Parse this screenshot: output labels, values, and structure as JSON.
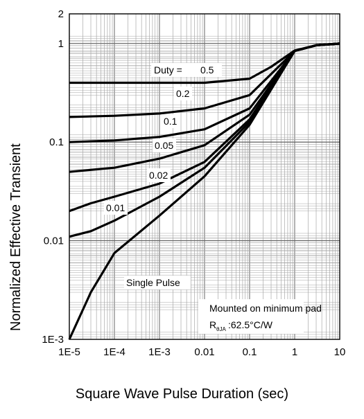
{
  "chart_data": {
    "type": "line",
    "title": "",
    "xlabel": "Square Wave Pulse Duration (sec)",
    "ylabel": "Normalized Effective Transient",
    "x_scale": "log",
    "y_scale": "log",
    "xlim": [
      1e-05,
      10
    ],
    "ylim": [
      0.001,
      2
    ],
    "x_tick_labels": [
      "1E-5",
      "1E-4",
      "1E-3",
      "0.01",
      "0.1",
      "1",
      "10"
    ],
    "y_tick_labels": [
      "1E-3",
      "0.01",
      "0.1",
      "1",
      "2"
    ],
    "grid": true,
    "series": [
      {
        "name": "0.5",
        "points": [
          [
            1e-05,
            0.4
          ],
          [
            0.0001,
            0.4
          ],
          [
            0.001,
            0.4
          ],
          [
            0.01,
            0.4
          ],
          [
            0.1,
            0.44
          ],
          [
            0.3,
            0.58
          ],
          [
            1,
            0.85
          ],
          [
            3,
            0.96
          ],
          [
            10,
            1.0
          ]
        ]
      },
      {
        "name": "0.2",
        "points": [
          [
            1e-05,
            0.18
          ],
          [
            0.0001,
            0.185
          ],
          [
            0.001,
            0.195
          ],
          [
            0.01,
            0.22
          ],
          [
            0.1,
            0.3
          ],
          [
            1,
            0.84
          ],
          [
            3,
            0.96
          ],
          [
            10,
            1.0
          ]
        ]
      },
      {
        "name": "0.1",
        "points": [
          [
            1e-05,
            0.1
          ],
          [
            0.0001,
            0.104
          ],
          [
            0.001,
            0.113
          ],
          [
            0.01,
            0.135
          ],
          [
            0.1,
            0.22
          ],
          [
            1,
            0.84
          ],
          [
            3,
            0.96
          ],
          [
            10,
            1.0
          ]
        ]
      },
      {
        "name": "0.05",
        "points": [
          [
            1e-05,
            0.05
          ],
          [
            0.0001,
            0.055
          ],
          [
            0.001,
            0.068
          ],
          [
            0.01,
            0.093
          ],
          [
            0.1,
            0.19
          ],
          [
            1,
            0.84
          ],
          [
            3,
            0.96
          ],
          [
            10,
            1.0
          ]
        ]
      },
      {
        "name": "0.02",
        "points": [
          [
            1e-05,
            0.02
          ],
          [
            3e-05,
            0.024
          ],
          [
            0.0001,
            0.028
          ],
          [
            0.001,
            0.038
          ],
          [
            0.01,
            0.063
          ],
          [
            0.1,
            0.17
          ],
          [
            1,
            0.84
          ],
          [
            3,
            0.96
          ],
          [
            10,
            1.0
          ]
        ]
      },
      {
        "name": "0.01",
        "points": [
          [
            1e-05,
            0.011
          ],
          [
            3e-05,
            0.0125
          ],
          [
            0.0001,
            0.016
          ],
          [
            0.001,
            0.028
          ],
          [
            0.01,
            0.055
          ],
          [
            0.1,
            0.16
          ],
          [
            1,
            0.84
          ],
          [
            3,
            0.96
          ],
          [
            10,
            1.0
          ]
        ]
      },
      {
        "name": "Single Pulse",
        "points": [
          [
            1e-05,
            0.001
          ],
          [
            3e-05,
            0.003
          ],
          [
            0.0001,
            0.0075
          ],
          [
            0.001,
            0.018
          ],
          [
            0.01,
            0.045
          ],
          [
            0.1,
            0.15
          ],
          [
            1,
            0.84
          ],
          [
            3,
            0.96
          ],
          [
            10,
            1.0
          ]
        ]
      }
    ],
    "annotations": {
      "duty_prefix": "Duty =",
      "mount_line1": "Mounted on minimum pad",
      "rtheta_main": "R",
      "rtheta_sub": "θJA",
      "rtheta_value": ":62.5°C/W"
    }
  }
}
